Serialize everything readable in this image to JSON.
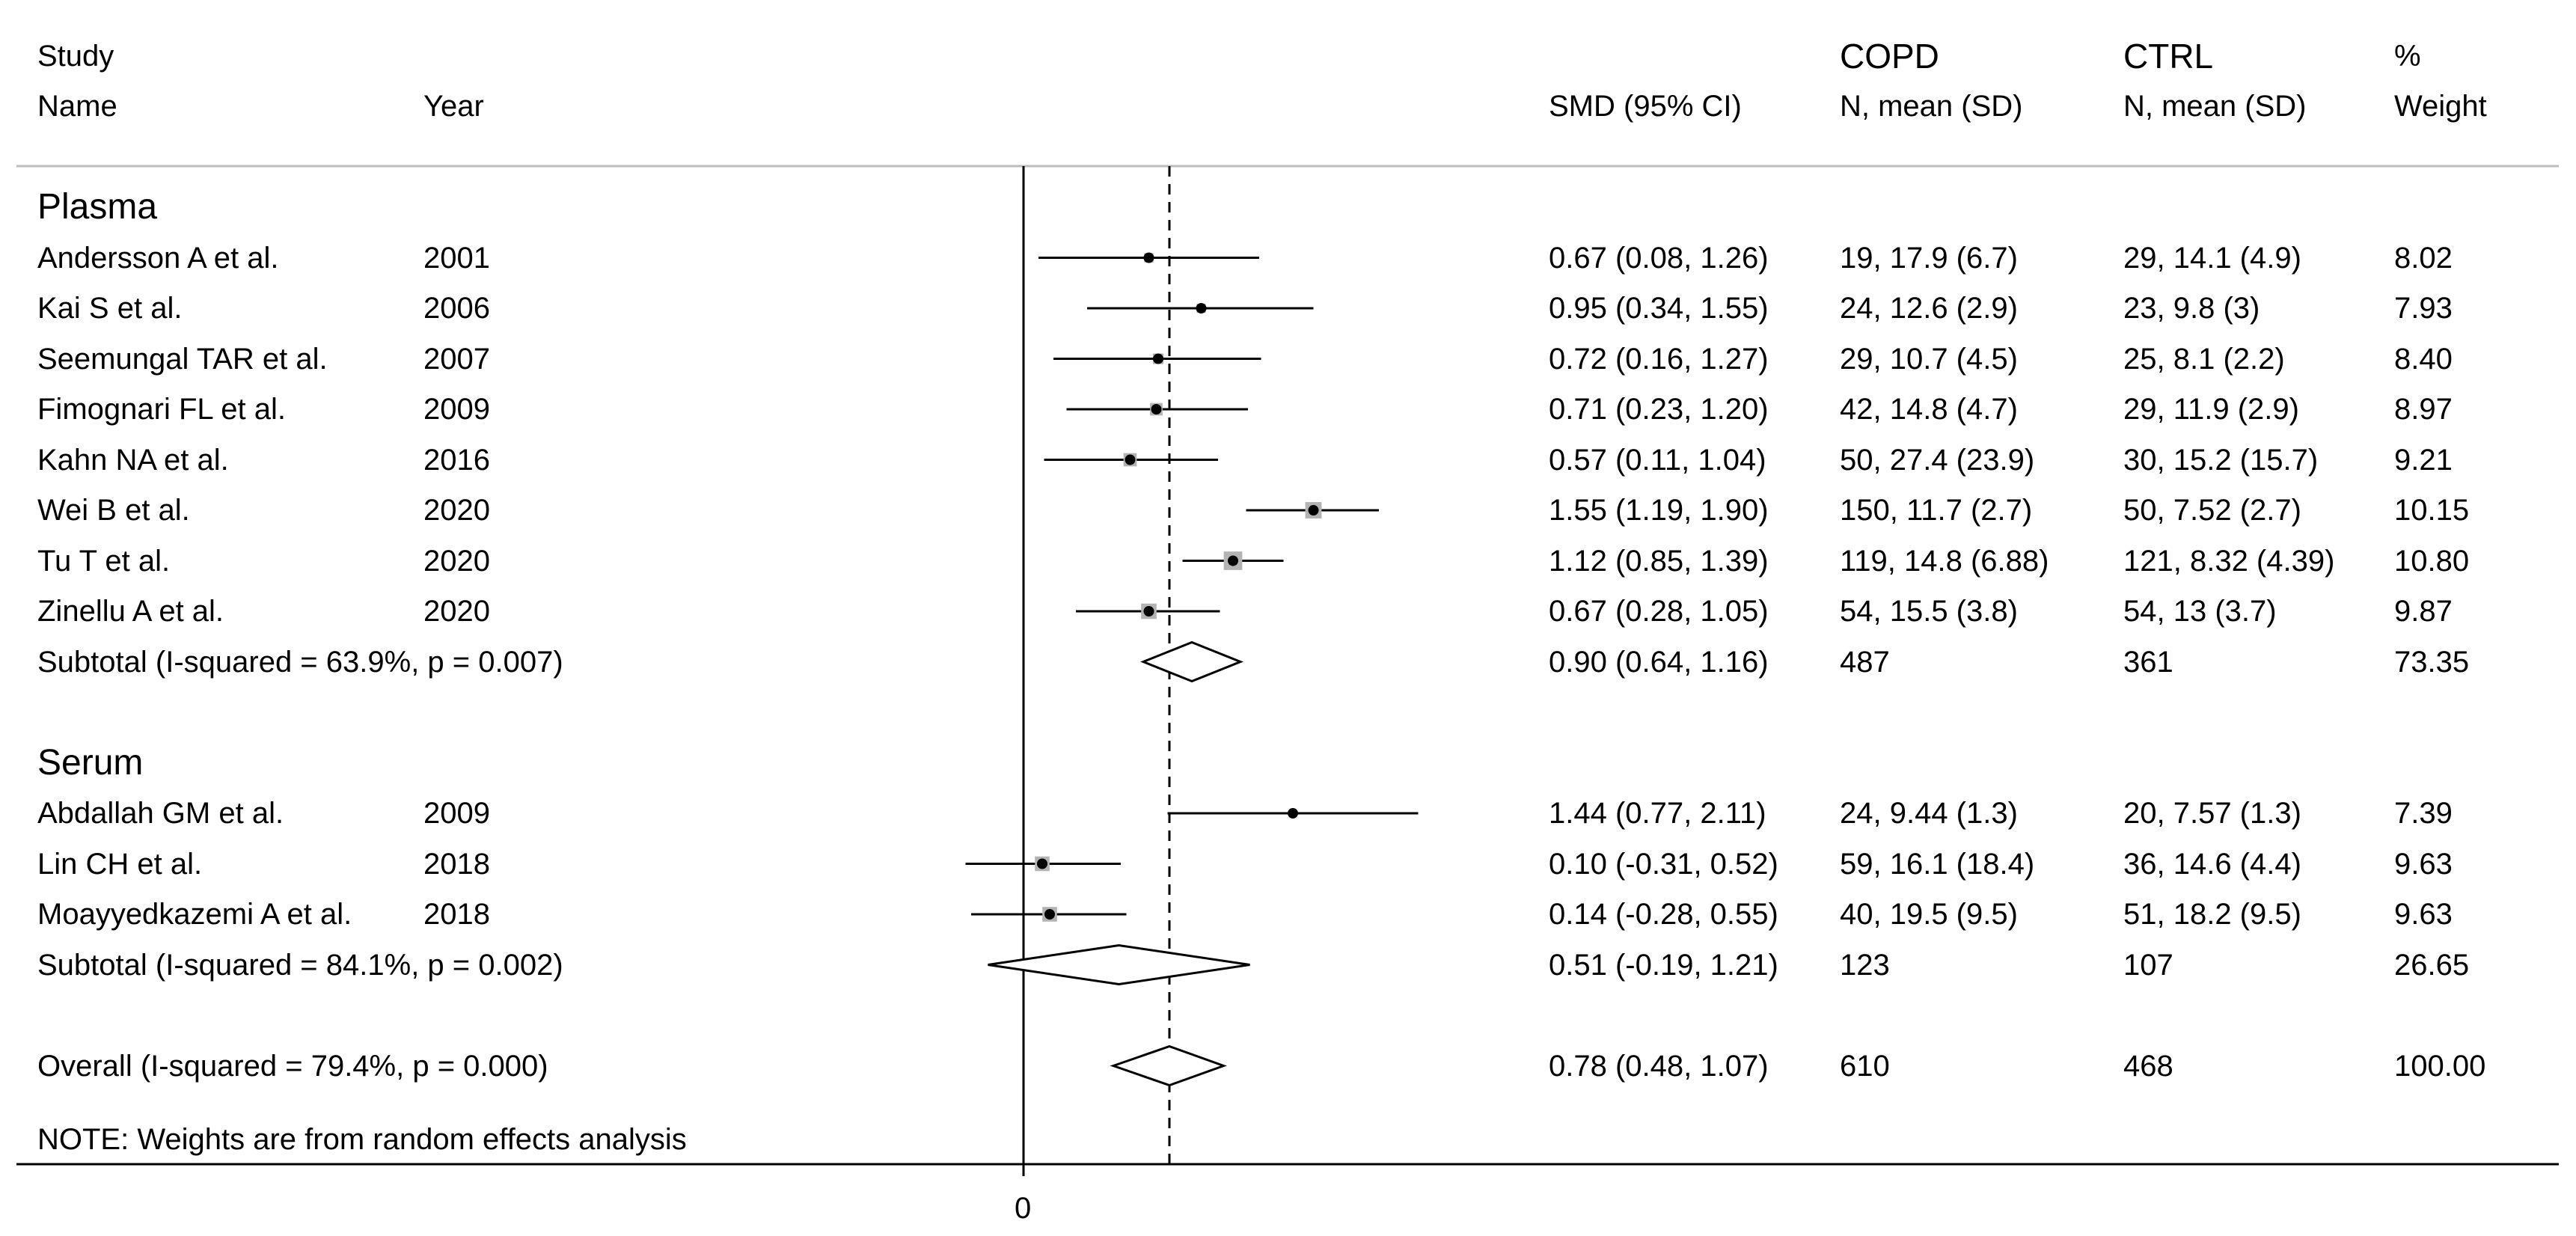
{
  "header": {
    "study_line1": "Study",
    "study_line2": "Name",
    "year": "Year",
    "smd": "SMD (95% CI)",
    "copd_line1": "COPD",
    "copd_line2": "N, mean (SD)",
    "ctrl_line1": "CTRL",
    "ctrl_line2": "N, mean (SD)",
    "weight_line1": "%",
    "weight_line2": "Weight"
  },
  "chart_data": {
    "type": "forest",
    "null_value": 0,
    "overall_estimate": 0.78,
    "x_tick_labels": [
      "0"
    ],
    "note": "NOTE: Weights are from random effects analysis",
    "groups": [
      {
        "name": "Plasma",
        "studies": [
          {
            "name": "Andersson A et al.",
            "year": "2001",
            "smd": 0.67,
            "lo": 0.08,
            "hi": 1.26,
            "ci_text": "0.67 (0.08, 1.26)",
            "copd": "19, 17.9 (6.7)",
            "ctrl": "29, 14.1 (4.9)",
            "weight": "8.02"
          },
          {
            "name": "Kai S et al.",
            "year": "2006",
            "smd": 0.95,
            "lo": 0.34,
            "hi": 1.55,
            "ci_text": "0.95 (0.34, 1.55)",
            "copd": "24, 12.6 (2.9)",
            "ctrl": "23, 9.8 (3)",
            "weight": "7.93"
          },
          {
            "name": "Seemungal TAR et al.",
            "year": "2007",
            "smd": 0.72,
            "lo": 0.16,
            "hi": 1.27,
            "ci_text": "0.72 (0.16, 1.27)",
            "copd": "29, 10.7 (4.5)",
            "ctrl": "25, 8.1 (2.2)",
            "weight": "8.40"
          },
          {
            "name": "Fimognari FL et al.",
            "year": "2009",
            "smd": 0.71,
            "lo": 0.23,
            "hi": 1.2,
            "ci_text": "0.71 (0.23, 1.20)",
            "copd": "42, 14.8 (4.7)",
            "ctrl": "29, 11.9 (2.9)",
            "weight": "8.97"
          },
          {
            "name": "Kahn NA et al.",
            "year": "2016",
            "smd": 0.57,
            "lo": 0.11,
            "hi": 1.04,
            "ci_text": "0.57 (0.11, 1.04)",
            "copd": "50, 27.4 (23.9)",
            "ctrl": "30, 15.2 (15.7)",
            "weight": "9.21"
          },
          {
            "name": "Wei B et al.",
            "year": "2020",
            "smd": 1.55,
            "lo": 1.19,
            "hi": 1.9,
            "ci_text": "1.55 (1.19, 1.90)",
            "copd": "150, 11.7 (2.7)",
            "ctrl": "50, 7.52 (2.7)",
            "weight": "10.15"
          },
          {
            "name": "Tu T et al.",
            "year": "2020",
            "smd": 1.12,
            "lo": 0.85,
            "hi": 1.39,
            "ci_text": "1.12 (0.85, 1.39)",
            "copd": "119, 14.8 (6.88)",
            "ctrl": "121, 8.32 (4.39)",
            "weight": "10.80"
          },
          {
            "name": "Zinellu A et al.",
            "year": "2020",
            "smd": 0.67,
            "lo": 0.28,
            "hi": 1.05,
            "ci_text": "0.67 (0.28, 1.05)",
            "copd": "54, 15.5 (3.8)",
            "ctrl": "54, 13 (3.7)",
            "weight": "9.87"
          }
        ],
        "subtotal": {
          "label": "Subtotal  (I-squared = 63.9%, p = 0.007)",
          "smd": 0.9,
          "lo": 0.64,
          "hi": 1.16,
          "ci_text": "0.90 (0.64, 1.16)",
          "copd": "487",
          "ctrl": "361",
          "weight": "73.35"
        }
      },
      {
        "name": "Serum",
        "studies": [
          {
            "name": "Abdallah GM et al.",
            "year": "2009",
            "smd": 1.44,
            "lo": 0.77,
            "hi": 2.11,
            "ci_text": "1.44 (0.77, 2.11)",
            "copd": "24, 9.44 (1.3)",
            "ctrl": "20, 7.57 (1.3)",
            "weight": "7.39"
          },
          {
            "name": "Lin CH et al.",
            "year": "2018",
            "smd": 0.1,
            "lo": -0.31,
            "hi": 0.52,
            "ci_text": "0.10 (-0.31, 0.52)",
            "copd": "59, 16.1 (18.4)",
            "ctrl": "36, 14.6 (4.4)",
            "weight": "9.63"
          },
          {
            "name": "Moayyedkazemi A et al.",
            "year": "2018",
            "smd": 0.14,
            "lo": -0.28,
            "hi": 0.55,
            "ci_text": "0.14 (-0.28, 0.55)",
            "copd": "40, 19.5 (9.5)",
            "ctrl": "51, 18.2 (9.5)",
            "weight": "9.63"
          }
        ],
        "subtotal": {
          "label": "Subtotal  (I-squared = 84.1%, p = 0.002)",
          "smd": 0.51,
          "lo": -0.19,
          "hi": 1.21,
          "ci_text": "0.51 (-0.19, 1.21)",
          "copd": "123",
          "ctrl": "107",
          "weight": "26.65"
        }
      }
    ],
    "overall": {
      "label": "Overall  (I-squared = 79.4%, p = 0.000)",
      "smd": 0.78,
      "lo": 0.48,
      "hi": 1.07,
      "ci_text": "0.78 (0.48, 1.07)",
      "copd": "610",
      "ctrl": "468",
      "weight": "100.00"
    }
  }
}
